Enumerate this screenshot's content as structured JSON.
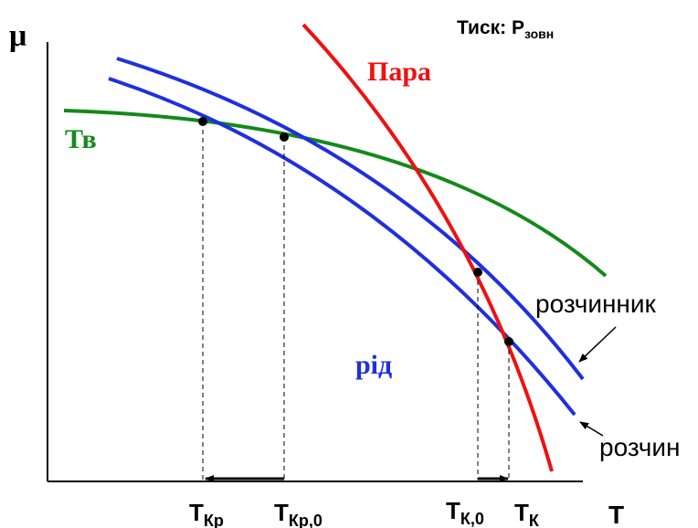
{
  "header": {
    "pressure_label": "Тиск: P",
    "pressure_sub": "зовн"
  },
  "axes": {
    "y_label": "μ",
    "x_label": "T"
  },
  "curves": {
    "solid": {
      "label": "Тв",
      "color": "#138A1A"
    },
    "vapor": {
      "label": "Пара",
      "color": "#EE1111"
    },
    "liquid": {
      "label": "рід",
      "color": "#1F2FE0"
    },
    "solvent": {
      "label": "розчинник",
      "color": "#1F2FE0"
    },
    "solution": {
      "label": "розчин",
      "color": "#1F2FE0"
    }
  },
  "x_ticks": [
    {
      "main": "T",
      "sub": "Кр"
    },
    {
      "main": "T",
      "sub": "Кр,0"
    },
    {
      "main": "T",
      "sub": "К,0"
    },
    {
      "main": "T",
      "sub": "К"
    }
  ],
  "colors": {
    "axis": "#000000",
    "guide": "#000000",
    "point": "#000000"
  }
}
